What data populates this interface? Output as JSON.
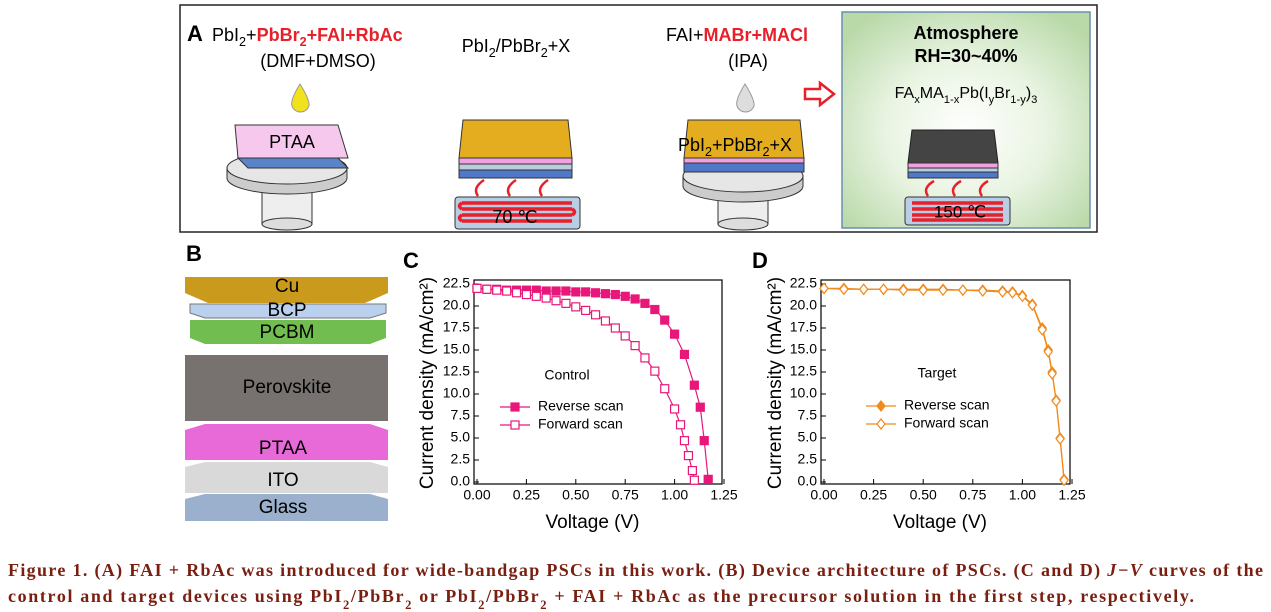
{
  "panel_a": {
    "label": "A",
    "step1_formula": [
      {
        "t": "PbI"
      },
      {
        "t": "2",
        "sub": true
      },
      {
        "t": "+"
      },
      {
        "t": "PbBr",
        "color": "#e8202a"
      },
      {
        "t": "2",
        "sub": true,
        "color": "#e8202a"
      },
      {
        "t": "+FAI+RbAc",
        "color": "#e8202a"
      }
    ],
    "step1_solvent": "(DMF+DMSO)",
    "substrate": "PTAA",
    "film1_formula": [
      {
        "t": "PbI"
      },
      {
        "t": "2",
        "sub": true
      },
      {
        "t": "/PbBr"
      },
      {
        "t": "2",
        "sub": true
      },
      {
        "t": "+X"
      }
    ],
    "anneal1": "70 ℃",
    "step2_formula": [
      {
        "t": "FAI+"
      },
      {
        "t": "MABr+MACl",
        "color": "#e8202a"
      }
    ],
    "step2_solvent": "(IPA)",
    "film2_formula": [
      {
        "t": "PbI"
      },
      {
        "t": "2",
        "sub": true
      },
      {
        "t": "+PbBr"
      },
      {
        "t": "2",
        "sub": true
      },
      {
        "t": "+X"
      }
    ],
    "inset_title": "Atmosphere",
    "inset_humidity": "RH=30~40%",
    "inset_formula": [
      {
        "t": "FA"
      },
      {
        "t": "x",
        "sub": true
      },
      {
        "t": "MA"
      },
      {
        "t": "1-x",
        "sub": true
      },
      {
        "t": "Pb(I"
      },
      {
        "t": "y",
        "sub": true
      },
      {
        "t": "Br"
      },
      {
        "t": "1-y",
        "sub": true
      },
      {
        "t": ")"
      },
      {
        "t": "3",
        "sub": true
      }
    ],
    "anneal2": "150 ℃"
  },
  "panel_b": {
    "label": "B",
    "layers": [
      "Cu",
      "BCP",
      "PCBM",
      "Perovskite",
      "PTAA",
      "ITO",
      "Glass"
    ]
  },
  "chart_data": [
    {
      "type": "line",
      "panel": "C",
      "annotation": "Control",
      "xlabel": "Voltage (V)",
      "ylabel": "Current density (mA/cm²)",
      "xlim": [
        0,
        1.25
      ],
      "ylim": [
        0,
        22.5
      ],
      "xticks": [
        {
          "value": 0,
          "label": "0.00"
        },
        0.25,
        {
          "value": 0.5,
          "label": "0.50"
        },
        0.75,
        {
          "value": 1,
          "label": "1.00"
        },
        1.25
      ],
      "yticks": [
        {
          "value": 0,
          "label": "0.0"
        },
        2.5,
        {
          "value": 5,
          "label": "5.0"
        },
        7.5,
        {
          "value": 10,
          "label": "10.0"
        },
        12.5,
        {
          "value": 15,
          "label": "15.0"
        },
        17.5,
        {
          "value": 20,
          "label": "20.0"
        },
        22.5
      ],
      "series": [
        {
          "name": "Reverse scan",
          "color": "#e8177a",
          "marker": "square",
          "filled": true,
          "x": [
            0,
            0.05,
            0.1,
            0.15,
            0.2,
            0.25,
            0.3,
            0.35,
            0.4,
            0.45,
            0.5,
            0.55,
            0.6,
            0.65,
            0.7,
            0.75,
            0.8,
            0.85,
            0.9,
            0.95,
            1.0,
            1.05,
            1.1,
            1.13,
            1.15,
            1.17
          ],
          "values": [
            22.0,
            21.9,
            21.9,
            21.8,
            21.8,
            21.8,
            21.8,
            21.7,
            21.7,
            21.7,
            21.6,
            21.6,
            21.5,
            21.4,
            21.3,
            21.1,
            20.8,
            20.3,
            19.6,
            18.4,
            16.8,
            14.5,
            11.0,
            8.5,
            4.7,
            0.3
          ]
        },
        {
          "name": "Forward scan",
          "color": "#e8177a",
          "marker": "square",
          "filled": false,
          "x": [
            0,
            0.05,
            0.1,
            0.15,
            0.2,
            0.25,
            0.3,
            0.35,
            0.4,
            0.45,
            0.5,
            0.55,
            0.6,
            0.65,
            0.7,
            0.75,
            0.8,
            0.85,
            0.9,
            0.95,
            1.0,
            1.03,
            1.05,
            1.07,
            1.09,
            1.1
          ],
          "values": [
            22.0,
            21.9,
            21.8,
            21.7,
            21.5,
            21.3,
            21.1,
            20.9,
            20.6,
            20.3,
            19.9,
            19.5,
            19.0,
            18.3,
            17.5,
            16.6,
            15.5,
            14.1,
            12.6,
            10.6,
            8.3,
            6.5,
            4.7,
            3.0,
            1.3,
            0.2
          ]
        }
      ]
    },
    {
      "type": "line",
      "panel": "D",
      "annotation": "Target",
      "xlabel": "Voltage (V)",
      "ylabel": "Current density (mA/cm²)",
      "xlim": [
        0,
        1.25
      ],
      "ylim": [
        0,
        22.5
      ],
      "xticks": [
        {
          "value": 0,
          "label": "0.00"
        },
        0.25,
        {
          "value": 0.5,
          "label": "0.50"
        },
        0.75,
        {
          "value": 1,
          "label": "1.00"
        },
        1.25
      ],
      "yticks": [
        {
          "value": 0,
          "label": "0.0"
        },
        2.5,
        {
          "value": 5,
          "label": "5.0"
        },
        7.5,
        {
          "value": 10,
          "label": "10.0"
        },
        12.5,
        {
          "value": 15,
          "label": "15.0"
        },
        17.5,
        {
          "value": 20,
          "label": "20.0"
        },
        22.5
      ],
      "series": [
        {
          "name": "Reverse scan",
          "color": "#f08a1c",
          "marker": "diamond",
          "filled": true,
          "x": [
            0,
            0.1,
            0.2,
            0.3,
            0.4,
            0.5,
            0.6,
            0.7,
            0.8,
            0.9,
            0.95,
            1.0,
            1.05,
            1.1,
            1.13,
            1.15,
            1.17,
            1.19,
            1.21
          ],
          "values": [
            22.0,
            22.0,
            21.9,
            21.9,
            21.9,
            21.9,
            21.9,
            21.8,
            21.8,
            21.7,
            21.6,
            21.2,
            20.2,
            17.5,
            15.0,
            12.5,
            9.3,
            5.0,
            0.3
          ]
        },
        {
          "name": "Forward scan",
          "color": "#f08a1c",
          "marker": "diamond",
          "filled": false,
          "x": [
            0,
            0.1,
            0.2,
            0.3,
            0.4,
            0.5,
            0.6,
            0.7,
            0.8,
            0.9,
            0.95,
            1.0,
            1.05,
            1.1,
            1.13,
            1.15,
            1.17,
            1.19,
            1.21
          ],
          "values": [
            22.0,
            21.9,
            21.9,
            21.9,
            21.8,
            21.8,
            21.8,
            21.8,
            21.7,
            21.6,
            21.5,
            21.1,
            20.1,
            17.3,
            14.8,
            12.3,
            9.2,
            4.9,
            0.2
          ]
        }
      ]
    }
  ],
  "caption": {
    "line1": [
      {
        "t": "Figure 1. (A) FAI + RbAc was introduced for wide-bandgap PSCs in this work. (B) Device architecture of PSCs. (C and D) "
      },
      {
        "t": "J−V",
        "i": true
      },
      {
        "t": " curves of the"
      }
    ],
    "line2": [
      {
        "t": "control and target devices using PbI"
      },
      {
        "t": "2",
        "sub": true
      },
      {
        "t": "/PbBr"
      },
      {
        "t": "2",
        "sub": true
      },
      {
        "t": " or PbI"
      },
      {
        "t": "2",
        "sub": true
      },
      {
        "t": "/PbBr"
      },
      {
        "t": "2",
        "sub": true
      },
      {
        "t": " + FAI + RbAc as the precursor solution in the first step, respectively."
      }
    ]
  }
}
